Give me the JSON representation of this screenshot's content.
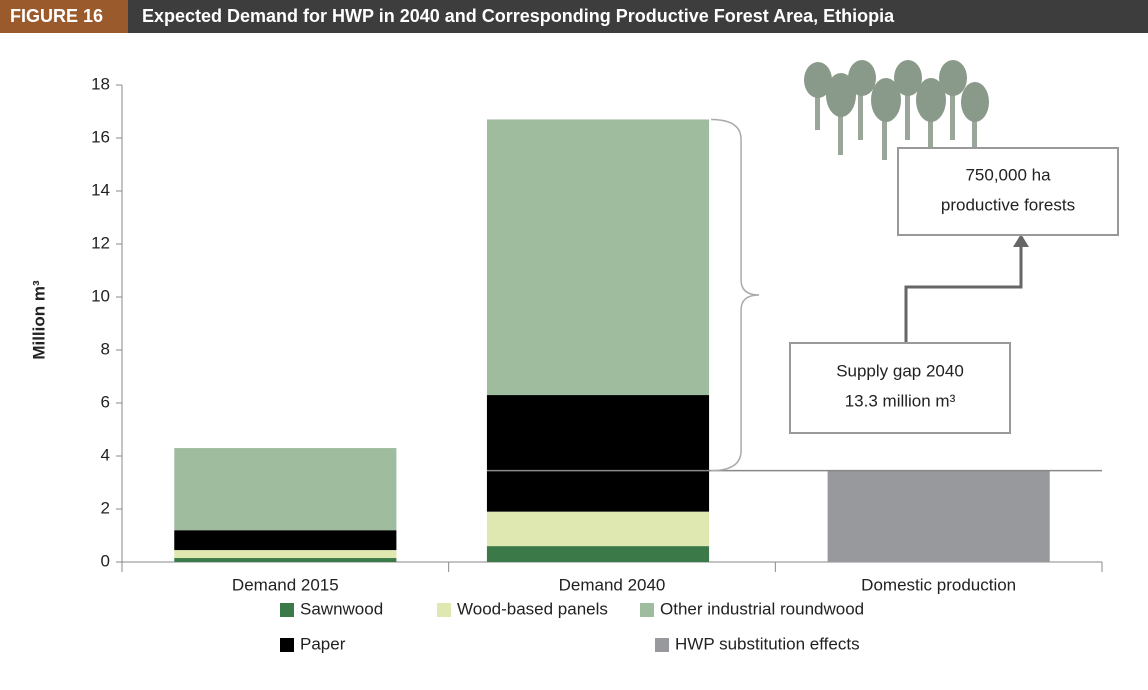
{
  "chart_data": {
    "type": "stacked-bar",
    "figure_label": "FIGURE 16",
    "title": "Expected Demand for HWP in 2040 and Corresponding Productive Forest Area, Ethiopia",
    "y_label": "Million m³",
    "categories": [
      "Demand 2015",
      "Demand 2040",
      "Domestic production"
    ],
    "series": [
      {
        "name": "Sawnwood",
        "color": "#3b7a48",
        "values": [
          0.15,
          0.6,
          null
        ]
      },
      {
        "name": "Wood-based panels",
        "color": "#dfe8b0",
        "values": [
          0.3,
          1.3,
          null
        ]
      },
      {
        "name": "Paper",
        "color": "#000000",
        "values": [
          0.75,
          4.4,
          null
        ]
      },
      {
        "name": "Other industrial roundwood",
        "color": "#9fbc9f",
        "values": [
          3.1,
          10.4,
          null
        ]
      },
      {
        "name": "HWP substitution effects",
        "color": "#98999c",
        "values": [
          null,
          null,
          3.45
        ]
      }
    ],
    "ylim": [
      0,
      18
    ],
    "yticks": [
      0,
      2,
      4,
      6,
      8,
      10,
      12,
      14,
      16,
      18
    ],
    "annotations": {
      "supply_gap": [
        "Supply gap 2040",
        "13.3 million m³"
      ],
      "forest_area": [
        "750,000 ha",
        "productive forests"
      ]
    }
  }
}
